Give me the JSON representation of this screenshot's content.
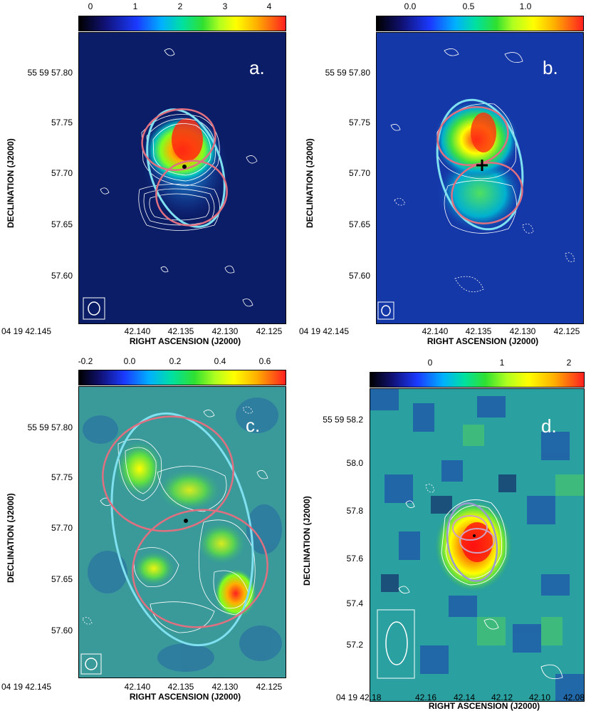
{
  "panels": [
    {
      "id": "a",
      "label": "a.",
      "colorbar_ticks": [
        "0",
        "1",
        "2",
        "3",
        "4"
      ],
      "y_ticks": [
        "55 59 57.80",
        "57.75",
        "57.70",
        "57.65",
        "57.60"
      ],
      "x_ticks_first": "04 19 42.145",
      "x_ticks": [
        "42.140",
        "42.135",
        "42.130",
        "42.125"
      ],
      "xlabel": "RIGHT ASCENSION (J2000)",
      "ylabel": "DECLINATION (J2000)"
    },
    {
      "id": "b",
      "label": "b.",
      "colorbar_ticks": [
        "0.0",
        "0.5",
        "1.0"
      ],
      "y_ticks": [
        "55 59 57.80",
        "57.75",
        "57.70",
        "57.65",
        "57.60"
      ],
      "x_ticks_first": "04 19 42.145",
      "x_ticks": [
        "42.140",
        "42.135",
        "42.130",
        "42.125"
      ],
      "xlabel": "RIGHT ASCENSION (J2000)",
      "ylabel": "DECLINATION (J2000)"
    },
    {
      "id": "c",
      "label": "c.",
      "colorbar_ticks": [
        "-0.2",
        "0.0",
        "0.2",
        "0.4",
        "0.6"
      ],
      "y_ticks": [
        "55 59 57.80",
        "57.75",
        "57.70",
        "57.65",
        "57.60"
      ],
      "x_ticks_first": "04 19 42.145",
      "x_ticks": [
        "42.140",
        "42.135",
        "42.130",
        "42.125"
      ],
      "xlabel": "RIGHT ASCENSION (J2000)",
      "ylabel": "DECLINATION (J2000)"
    },
    {
      "id": "d",
      "label": "d.",
      "colorbar_ticks": [
        "0",
        "1",
        "2"
      ],
      "y_ticks": [
        "55 59 58.2",
        "58.0",
        "57.8",
        "57.6",
        "57.4",
        "57.2"
      ],
      "x_ticks_first": "04 19 42.18",
      "x_ticks": [
        "42.16",
        "42.14",
        "42.12",
        "42.10",
        "42.08"
      ],
      "xlabel": "RIGHT ASCENSION (J2000)",
      "ylabel": "DECLINATION (J2000)"
    }
  ],
  "colors": {
    "background_dark": "#0a1040",
    "background_mid": "#1a3a9a",
    "background_green": "#3aa080",
    "contour": "#ffffff",
    "ellipse_cyan": "#7fe0f0",
    "ellipse_pink": "#e07080"
  }
}
